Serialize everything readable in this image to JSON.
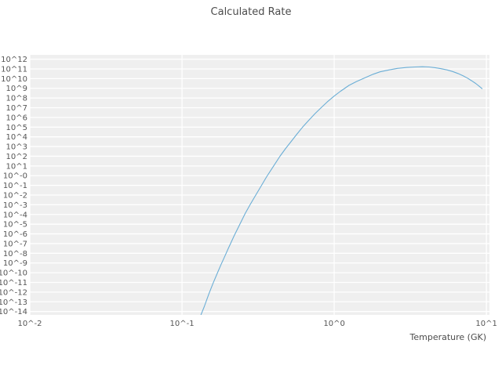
{
  "chart_data": {
    "type": "line",
    "title": "Calculated Rate",
    "xlabel": "Temperature (GK)",
    "ylabel": "",
    "x_scale": "log",
    "y_scale": "log",
    "xlim_log": [
      -2.0,
      1.02
    ],
    "ylim_log": [
      -14.35,
      12.45
    ],
    "grid": true,
    "legend": "none",
    "plot_bg": "#efefef",
    "grid_color": "#ffffff",
    "line_color": "#6baed6",
    "x_tick_exps": [
      -2,
      -1,
      0,
      1
    ],
    "x_tick_labels": [
      "10^-2",
      "10^-1",
      "10^0",
      "10^1"
    ],
    "y_tick_exps": [
      12,
      11,
      10,
      9,
      8,
      7,
      6,
      5,
      4,
      3,
      2,
      1,
      0,
      -1,
      -2,
      -3,
      -4,
      -5,
      -6,
      -7,
      -8,
      -9,
      -10,
      -11,
      -12,
      -13,
      -14
    ],
    "y_tick_labels": [
      "10^12",
      "10^11",
      "10^10",
      "10^9",
      "10^8",
      "10^7",
      "10^6",
      "10^5",
      "10^4",
      "10^3",
      "10^2",
      "10^1",
      "10^-0",
      "10^-1",
      "10^-2",
      "10^-3",
      "10^-4",
      "10^-5",
      "10^-6",
      "10^-7",
      "10^-8",
      "10^-9",
      "10^-10",
      "10^-11",
      "10^-12",
      "10^-13",
      "10^-14"
    ],
    "series": [
      {
        "name": "calculated-rate",
        "points_T_logRate": [
          [
            0.132,
            -14.5
          ],
          [
            0.14,
            -13.5
          ],
          [
            0.15,
            -12.2
          ],
          [
            0.16,
            -11.1
          ],
          [
            0.17,
            -10.1
          ],
          [
            0.18,
            -9.2
          ],
          [
            0.19,
            -8.4
          ],
          [
            0.2,
            -7.6
          ],
          [
            0.22,
            -6.2
          ],
          [
            0.24,
            -5.0
          ],
          [
            0.26,
            -3.9
          ],
          [
            0.28,
            -3.0
          ],
          [
            0.3,
            -2.2
          ],
          [
            0.33,
            -1.1
          ],
          [
            0.36,
            -0.1
          ],
          [
            0.4,
            1.0
          ],
          [
            0.44,
            2.0
          ],
          [
            0.48,
            2.8
          ],
          [
            0.52,
            3.5
          ],
          [
            0.57,
            4.3
          ],
          [
            0.62,
            5.0
          ],
          [
            0.68,
            5.7
          ],
          [
            0.75,
            6.4
          ],
          [
            0.82,
            7.0
          ],
          [
            0.9,
            7.6
          ],
          [
            1.0,
            8.2
          ],
          [
            1.1,
            8.7
          ],
          [
            1.25,
            9.3
          ],
          [
            1.4,
            9.7
          ],
          [
            1.6,
            10.1
          ],
          [
            1.8,
            10.45
          ],
          [
            2.0,
            10.7
          ],
          [
            2.3,
            10.9
          ],
          [
            2.6,
            11.05
          ],
          [
            3.0,
            11.15
          ],
          [
            3.4,
            11.2
          ],
          [
            3.8,
            11.22
          ],
          [
            4.2,
            11.2
          ],
          [
            4.6,
            11.13
          ],
          [
            5.0,
            11.03
          ],
          [
            5.5,
            10.9
          ],
          [
            6.0,
            10.73
          ],
          [
            6.5,
            10.53
          ],
          [
            7.0,
            10.3
          ],
          [
            7.5,
            10.05
          ],
          [
            8.0,
            9.78
          ],
          [
            8.5,
            9.5
          ],
          [
            9.0,
            9.2
          ],
          [
            9.4,
            8.95
          ]
        ]
      }
    ]
  }
}
